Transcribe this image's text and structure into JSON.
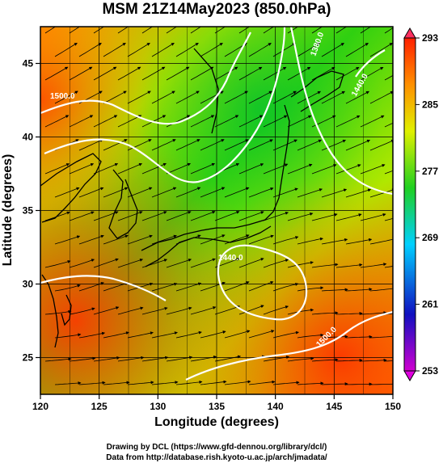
{
  "title": "MSM 21Z14May2023 (850.0hPa)",
  "x_axis": {
    "label": "Longitude (degrees)",
    "range": [
      120,
      150
    ],
    "ticks": [
      "120",
      "125",
      "130",
      "135",
      "140",
      "145",
      "150"
    ]
  },
  "y_axis": {
    "label": "Latitude  (degrees)",
    "range": [
      22.5,
      47.5
    ],
    "ticks": [
      "25",
      "30",
      "35",
      "40",
      "45"
    ]
  },
  "colorbar": {
    "range": [
      253,
      293
    ],
    "ticks": [
      "253",
      "261",
      "269",
      "277",
      "285",
      "293"
    ],
    "colors": [
      "#d000d0",
      "#1010c0",
      "#00d0ff",
      "#20d020",
      "#e0f000",
      "#ff9000",
      "#ff2000"
    ]
  },
  "contours": {
    "color": "#ffffff",
    "labels": [
      "1500.0",
      "1440.0",
      "1380.0",
      "1440.0",
      "1500.0"
    ]
  },
  "credits": {
    "line1": "Drawing by DCL (https://www.gfd-dennou.org/library/dcl/)",
    "line2": "Data from http://database.rish.kyoto-u.ac.jp/arch/jmadata/"
  }
}
